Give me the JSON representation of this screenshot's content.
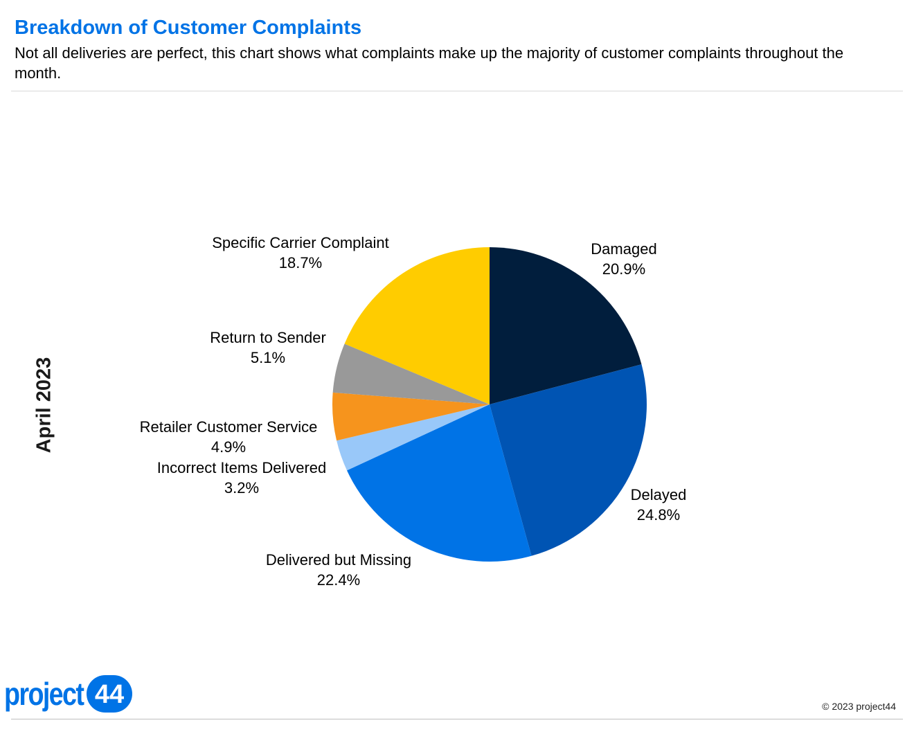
{
  "header": {
    "title": "Breakdown of Customer Complaints",
    "subtitle": "Not all deliveries are perfect, this chart shows what complaints make up the majority of customer complaints throughout the month."
  },
  "side_label": "April 2023",
  "footer": {
    "logo_text": "project",
    "logo_number": "44",
    "copyright": "© 2023 project44"
  },
  "colors": {
    "title": "#0073E6",
    "logo": "#0073E6"
  },
  "chart_data": {
    "type": "pie",
    "start_angle": "12 o'clock",
    "direction": "clockwise",
    "slices": [
      {
        "label": "Damaged",
        "value": 20.9,
        "value_label": "20.9%",
        "color": "#011E3D"
      },
      {
        "label": "Delayed",
        "value": 24.8,
        "value_label": "24.8%",
        "color": "#0054B3"
      },
      {
        "label": "Delivered but Missing",
        "value": 22.4,
        "value_label": "22.4%",
        "color": "#0073E6"
      },
      {
        "label": "Incorrect Items Delivered",
        "value": 3.2,
        "value_label": "3.2%",
        "color": "#99C8F9"
      },
      {
        "label": "Retailer Customer Service",
        "value": 4.9,
        "value_label": "4.9%",
        "color": "#F6941D"
      },
      {
        "label": "Return to Sender",
        "value": 5.1,
        "value_label": "5.1%",
        "color": "#999999"
      },
      {
        "label": "Specific Carrier Complaint",
        "value": 18.7,
        "value_label": "18.7%",
        "color": "#FFCC00"
      }
    ]
  }
}
